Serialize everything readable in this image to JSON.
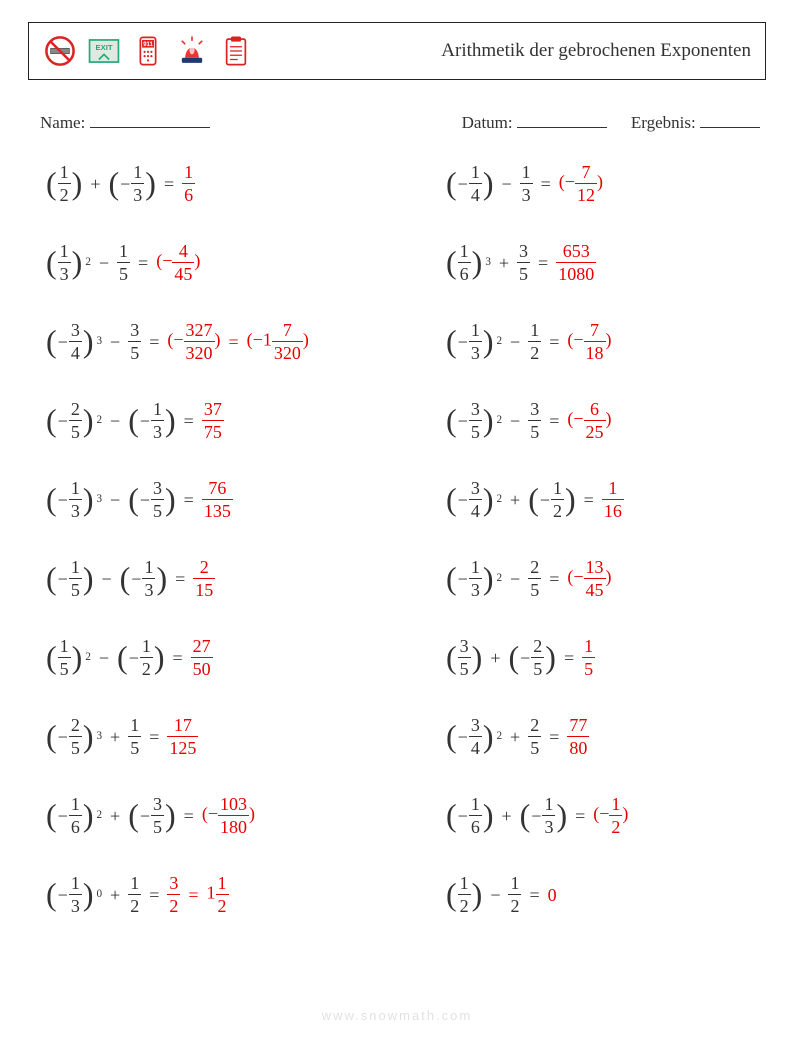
{
  "colors": {
    "answer": "#e60000",
    "text": "#333333",
    "border": "#222222",
    "watermark": "rgba(0,0,0,0.12)"
  },
  "title": "Arithmetik der gebrochenen Exponenten",
  "meta": {
    "name_label": "Name:",
    "date_label": "Datum:",
    "result_label": "Ergebnis:"
  },
  "footer": "www.snowmath.com",
  "icons": [
    "no-smoking",
    "exit-sign",
    "phone-911",
    "alarm-light",
    "clipboard"
  ],
  "problems": {
    "left": [
      {
        "a": {
          "neg": false,
          "num": 1,
          "den": 2,
          "exp": null
        },
        "op": "+",
        "b": {
          "neg": true,
          "num": 1,
          "den": 3,
          "exp": null
        },
        "ans": [
          {
            "neg": false,
            "num": 1,
            "den": 6
          }
        ]
      },
      {
        "a": {
          "neg": false,
          "num": 1,
          "den": 3,
          "exp": 2
        },
        "op": "−",
        "b": {
          "neg": false,
          "num": 1,
          "den": 5,
          "exp": null
        },
        "ans": [
          {
            "parNeg": true,
            "num": 4,
            "den": 45
          }
        ]
      },
      {
        "a": {
          "neg": true,
          "num": 3,
          "den": 4,
          "exp": 3
        },
        "op": "−",
        "b": {
          "neg": false,
          "num": 3,
          "den": 5,
          "exp": null
        },
        "ans": [
          {
            "parNeg": true,
            "num": 327,
            "den": 320
          },
          {
            "parNegMixed": true,
            "whole": 1,
            "num": 7,
            "den": 320
          }
        ]
      },
      {
        "a": {
          "neg": true,
          "num": 2,
          "den": 5,
          "exp": 2
        },
        "op": "−",
        "b": {
          "neg": true,
          "num": 1,
          "den": 3,
          "exp": null
        },
        "ans": [
          {
            "neg": false,
            "num": 37,
            "den": 75
          }
        ]
      },
      {
        "a": {
          "neg": true,
          "num": 1,
          "den": 3,
          "exp": 3
        },
        "op": "−",
        "b": {
          "neg": true,
          "num": 3,
          "den": 5,
          "exp": null
        },
        "ans": [
          {
            "neg": false,
            "num": 76,
            "den": 135
          }
        ]
      },
      {
        "a": {
          "neg": true,
          "num": 1,
          "den": 5,
          "exp": null
        },
        "op": "−",
        "b": {
          "neg": true,
          "num": 1,
          "den": 3,
          "exp": null
        },
        "ans": [
          {
            "neg": false,
            "num": 2,
            "den": 15
          }
        ]
      },
      {
        "a": {
          "neg": false,
          "num": 1,
          "den": 5,
          "exp": 2
        },
        "op": "−",
        "b": {
          "neg": true,
          "num": 1,
          "den": 2,
          "exp": null
        },
        "ans": [
          {
            "neg": false,
            "num": 27,
            "den": 50
          }
        ]
      },
      {
        "a": {
          "neg": true,
          "num": 2,
          "den": 5,
          "exp": 3
        },
        "op": "+",
        "b": {
          "neg": false,
          "num": 1,
          "den": 5,
          "exp": null
        },
        "ans": [
          {
            "neg": false,
            "num": 17,
            "den": 125
          }
        ]
      },
      {
        "a": {
          "neg": true,
          "num": 1,
          "den": 6,
          "exp": 2
        },
        "op": "+",
        "b": {
          "neg": true,
          "num": 3,
          "den": 5,
          "exp": null
        },
        "ans": [
          {
            "parNeg": true,
            "num": 103,
            "den": 180
          }
        ]
      },
      {
        "a": {
          "neg": true,
          "num": 1,
          "den": 3,
          "exp": 0
        },
        "op": "+",
        "b": {
          "neg": false,
          "num": 1,
          "den": 2,
          "exp": null
        },
        "ans": [
          {
            "neg": false,
            "num": 3,
            "den": 2
          },
          {
            "mixed": true,
            "whole": 1,
            "num": 1,
            "den": 2
          }
        ]
      }
    ],
    "right": [
      {
        "a": {
          "neg": true,
          "num": 1,
          "den": 4,
          "exp": null
        },
        "op": "−",
        "b": {
          "neg": false,
          "num": 1,
          "den": 3,
          "exp": null
        },
        "ans": [
          {
            "parNeg": true,
            "num": 7,
            "den": 12
          }
        ]
      },
      {
        "a": {
          "neg": false,
          "num": 1,
          "den": 6,
          "exp": 3
        },
        "op": "+",
        "b": {
          "neg": false,
          "num": 3,
          "den": 5,
          "exp": null
        },
        "ans": [
          {
            "neg": false,
            "num": 653,
            "den": 1080
          }
        ]
      },
      {
        "a": {
          "neg": true,
          "num": 1,
          "den": 3,
          "exp": 2
        },
        "op": "−",
        "b": {
          "neg": false,
          "num": 1,
          "den": 2,
          "exp": null
        },
        "ans": [
          {
            "parNeg": true,
            "num": 7,
            "den": 18
          }
        ]
      },
      {
        "a": {
          "neg": true,
          "num": 3,
          "den": 5,
          "exp": 2
        },
        "op": "−",
        "b": {
          "neg": false,
          "num": 3,
          "den": 5,
          "exp": null
        },
        "ans": [
          {
            "parNeg": true,
            "num": 6,
            "den": 25
          }
        ]
      },
      {
        "a": {
          "neg": true,
          "num": 3,
          "den": 4,
          "exp": 2
        },
        "op": "+",
        "b": {
          "neg": true,
          "num": 1,
          "den": 2,
          "exp": null
        },
        "ans": [
          {
            "neg": false,
            "num": 1,
            "den": 16
          }
        ]
      },
      {
        "a": {
          "neg": true,
          "num": 1,
          "den": 3,
          "exp": 2
        },
        "op": "−",
        "b": {
          "neg": false,
          "num": 2,
          "den": 5,
          "exp": null
        },
        "ans": [
          {
            "parNeg": true,
            "num": 13,
            "den": 45
          }
        ]
      },
      {
        "a": {
          "neg": false,
          "num": 3,
          "den": 5,
          "exp": null
        },
        "op": "+",
        "b": {
          "neg": true,
          "num": 2,
          "den": 5,
          "exp": null
        },
        "ans": [
          {
            "neg": false,
            "num": 1,
            "den": 5
          }
        ]
      },
      {
        "a": {
          "neg": true,
          "num": 3,
          "den": 4,
          "exp": 2
        },
        "op": "+",
        "b": {
          "neg": false,
          "num": 2,
          "den": 5,
          "exp": null
        },
        "ans": [
          {
            "neg": false,
            "num": 77,
            "den": 80
          }
        ]
      },
      {
        "a": {
          "neg": true,
          "num": 1,
          "den": 6,
          "exp": null
        },
        "op": "+",
        "b": {
          "neg": true,
          "num": 1,
          "den": 3,
          "exp": null
        },
        "ans": [
          {
            "parNeg": true,
            "num": 1,
            "den": 2
          }
        ]
      },
      {
        "a": {
          "neg": false,
          "num": 1,
          "den": 2,
          "exp": null
        },
        "op": "−",
        "b": {
          "neg": false,
          "num": 1,
          "den": 2,
          "exp": null
        },
        "ans": [
          {
            "zero": true
          }
        ]
      }
    ]
  }
}
